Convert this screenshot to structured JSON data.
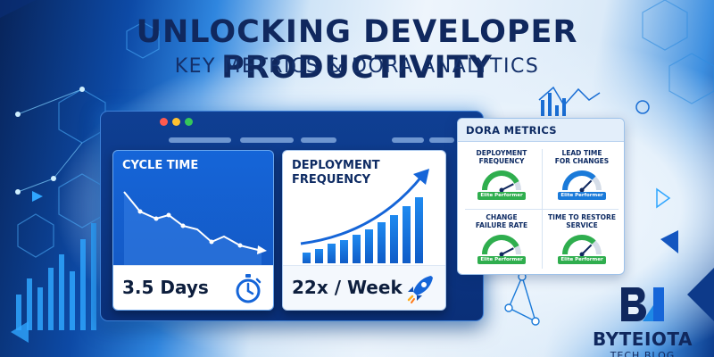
{
  "headline": "UNLOCKING DEVELOPER PRODUCTIVITY",
  "subheadline": "KEY METRICS & DORA ANALYTICS",
  "cycle_card": {
    "title": "CYCLE TIME",
    "value": "3.5 Days",
    "icon": "stopwatch-icon"
  },
  "deploy_card": {
    "title": "DEPLOYMENT FREQUENCY",
    "value": "22x / Week",
    "icon": "rocket-icon"
  },
  "dora": {
    "title": "DORA METRICS",
    "metrics": [
      {
        "label_line1": "DEPLOYMENT",
        "label_line2": "FREQUENCY",
        "badge": "Elite Performer",
        "gauge_level": 0.85,
        "color": "#2fae4e"
      },
      {
        "label_line1": "LEAD TIME",
        "label_line2": "FOR CHANGES",
        "badge": "Elite Performer",
        "gauge_level": 0.75,
        "color": "#1a7ad9"
      },
      {
        "label_line1": "CHANGE",
        "label_line2": "FAILURE RATE",
        "badge": "Elite Performer",
        "gauge_level": 0.85,
        "color": "#2fae4e"
      },
      {
        "label_line1": "TIME TO RESTORE",
        "label_line2": "SERVICE",
        "badge": "Elite Performer",
        "gauge_level": 0.75,
        "color": "#2fae4e"
      }
    ]
  },
  "brand": {
    "name": "BYTEIOTA",
    "tagline": "TECH BLOG"
  },
  "colors": {
    "navy": "#10285e",
    "accent_blue": "#1565d8",
    "elite_green": "#2fae4e"
  }
}
